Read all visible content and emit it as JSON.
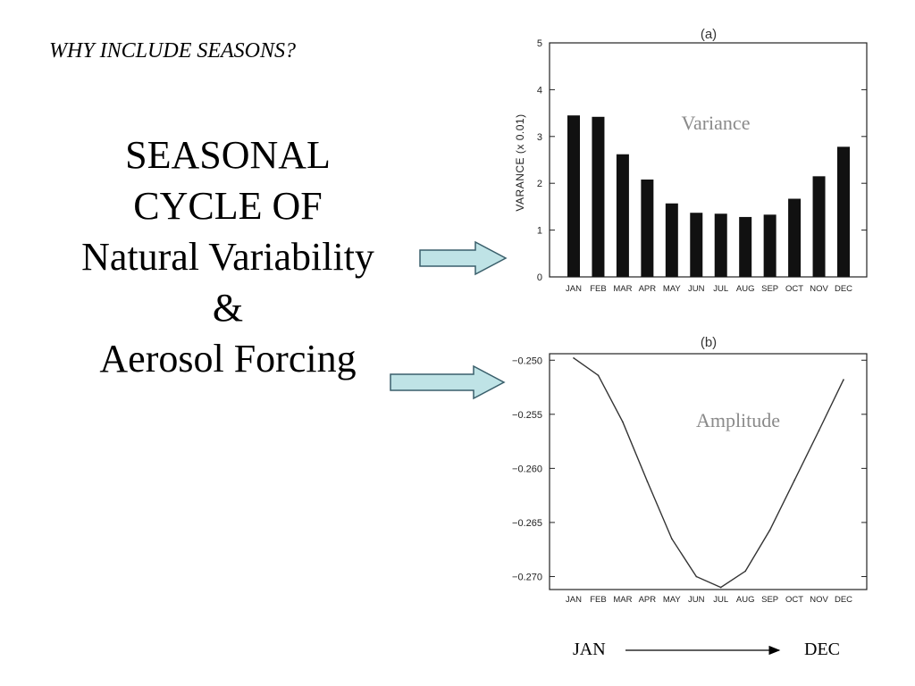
{
  "slide": {
    "subtitle": "WHY INCLUDE SEASONS?",
    "title_lines": [
      "SEASONAL",
      "CYCLE OF",
      "Natural Variability",
      "&",
      "Aerosol Forcing"
    ],
    "timeline": {
      "start": "JAN",
      "end": "DEC"
    }
  },
  "colors": {
    "arrow_fill": "#bfe3e6",
    "arrow_stroke": "#3a5f6b",
    "bar": "#111111",
    "annotation": "#8a8a8a"
  },
  "chart_data": [
    {
      "type": "bar",
      "panel_label": "(a)",
      "annotation": "Variance",
      "ylabel": "VARANCE (x 0.01)",
      "xlabel": "",
      "categories": [
        "JAN",
        "FEB",
        "MAR",
        "APR",
        "MAY",
        "JUN",
        "JUL",
        "AUG",
        "SEP",
        "OCT",
        "NOV",
        "DEC"
      ],
      "values": [
        3.45,
        3.42,
        2.62,
        2.08,
        1.57,
        1.37,
        1.35,
        1.28,
        1.33,
        1.67,
        2.15,
        2.78
      ],
      "ylim": [
        0,
        5
      ],
      "yticks": [
        0,
        1,
        2,
        3,
        4,
        5
      ],
      "grid": false
    },
    {
      "type": "line",
      "panel_label": "(b)",
      "annotation": "Amplitude",
      "xlabel": "",
      "ylabel": "",
      "categories": [
        "JAN",
        "FEB",
        "MAR",
        "APR",
        "MAY",
        "JUN",
        "JUL",
        "AUG",
        "SEP",
        "OCT",
        "NOV",
        "DEC"
      ],
      "values": [
        -0.2498,
        -0.2514,
        -0.2557,
        -0.2612,
        -0.2665,
        -0.27,
        -0.271,
        -0.2695,
        -0.2657,
        -0.2611,
        -0.2565,
        -0.2518
      ],
      "ylim": [
        -0.2712,
        -0.2494
      ],
      "yticks": [
        -0.25,
        -0.255,
        -0.26,
        -0.265,
        -0.27
      ],
      "ytick_labels": [
        "−0.250",
        "−0.255",
        "−0.260",
        "−0.265",
        "−0.270"
      ],
      "grid": false
    }
  ]
}
